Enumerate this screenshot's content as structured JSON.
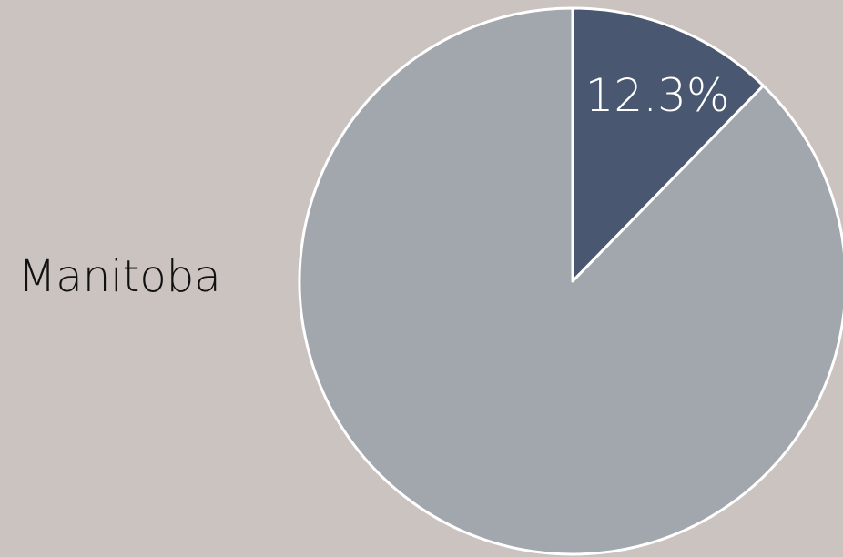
{
  "chart_data": {
    "type": "pie",
    "title": "Manitoba",
    "slices": [
      {
        "label": "12.3%",
        "value": 12.3,
        "color": "#4a5770"
      },
      {
        "label": "",
        "value": 87.7,
        "color": "#a1a7ad"
      }
    ],
    "start_angle_deg": 0,
    "direction": "clockwise",
    "colors": {
      "background": "#cbc3c0",
      "slice_border": "#ffffff"
    }
  }
}
